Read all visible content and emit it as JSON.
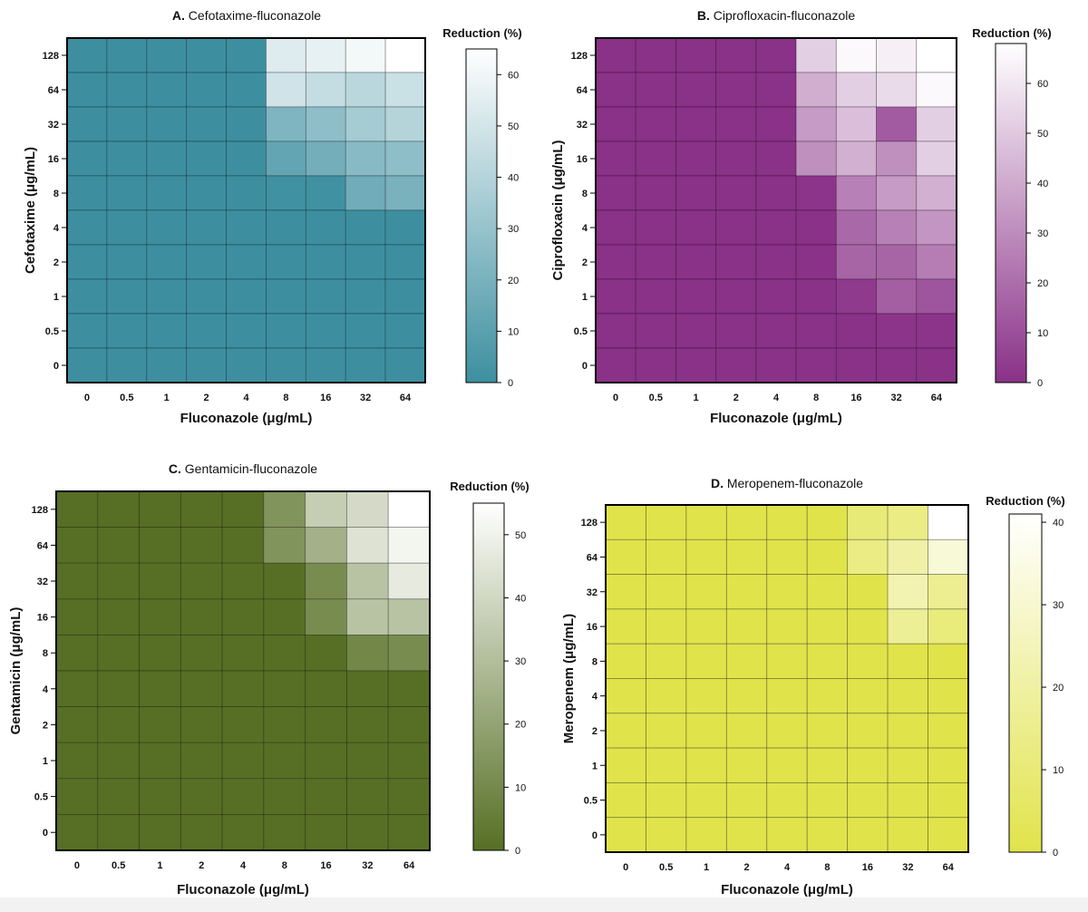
{
  "chart_data": [
    {
      "type": "heatmap",
      "panel": "A",
      "title_prefix": "A.",
      "title": "Cefotaxime-fluconazole",
      "xlabel": "Fluconazole (μg/mL)",
      "ylabel": "Cefotaxime (μg/mL)",
      "x_ticks": [
        "0",
        "0.5",
        "1",
        "2",
        "4",
        "8",
        "16",
        "32",
        "64"
      ],
      "y_ticks": [
        "128",
        "64",
        "32",
        "16",
        "8",
        "4",
        "2",
        "1",
        "0.5",
        "0"
      ],
      "colorbar_label": "Reduction (%)",
      "colorbar_range": [
        0,
        65
      ],
      "colorbar_ticks": [
        "0",
        "10",
        "20",
        "30",
        "40",
        "50",
        "60"
      ],
      "color_low": "#3d8fa0",
      "color_high": "#ffffff",
      "values": [
        [
          0,
          0,
          0,
          0,
          0,
          54,
          57,
          61,
          65
        ],
        [
          0,
          0,
          0,
          0,
          0,
          49,
          45,
          42,
          47
        ],
        [
          0,
          0,
          0,
          0,
          0,
          22,
          27,
          35,
          40
        ],
        [
          0,
          0,
          0,
          0,
          0,
          13,
          18,
          25,
          27
        ],
        [
          0,
          0,
          0,
          0,
          0,
          1,
          1,
          17,
          20
        ],
        [
          0,
          0,
          0,
          0,
          0,
          0,
          0,
          0,
          0
        ],
        [
          0,
          0,
          0,
          0,
          0,
          0,
          0,
          0,
          0
        ],
        [
          0,
          0,
          0,
          0,
          0,
          0,
          0,
          0,
          0
        ],
        [
          0,
          0,
          0,
          0,
          0,
          0,
          0,
          0,
          0
        ],
        [
          0,
          0,
          0,
          0,
          0,
          0,
          0,
          0,
          0
        ]
      ]
    },
    {
      "type": "heatmap",
      "panel": "B",
      "title_prefix": "B.",
      "title": "Ciprofloxacin-fluconazole",
      "xlabel": "Fluconazole (μg/mL)",
      "ylabel": "Ciprofloxacin (μg/mL)",
      "x_ticks": [
        "0",
        "0.5",
        "1",
        "2",
        "4",
        "8",
        "16",
        "32",
        "64"
      ],
      "y_ticks": [
        "128",
        "64",
        "32",
        "16",
        "8",
        "4",
        "2",
        "1",
        "0.5",
        "0"
      ],
      "colorbar_label": "Reduction (%)",
      "colorbar_range": [
        0,
        68
      ],
      "colorbar_ticks": [
        "0",
        "10",
        "20",
        "30",
        "40",
        "50",
        "60"
      ],
      "color_low": "#8a3188",
      "color_high": "#ffffff",
      "values": [
        [
          0,
          0,
          0,
          0,
          0,
          52,
          66,
          63,
          68
        ],
        [
          0,
          0,
          0,
          0,
          0,
          41,
          52,
          56,
          66
        ],
        [
          0,
          0,
          0,
          0,
          0,
          35,
          47,
          14,
          52
        ],
        [
          0,
          0,
          0,
          0,
          0,
          31,
          42,
          31,
          52
        ],
        [
          0,
          0,
          0,
          0,
          0,
          1,
          26,
          35,
          42
        ],
        [
          0,
          0,
          0,
          0,
          0,
          0,
          18,
          26,
          33
        ],
        [
          0,
          0,
          0,
          0,
          0,
          0,
          17,
          17,
          25
        ],
        [
          0,
          0,
          0,
          0,
          0,
          0,
          3,
          15,
          12
        ],
        [
          0,
          0,
          0,
          0,
          0,
          0,
          0,
          1,
          1
        ],
        [
          0,
          0,
          0,
          0,
          0,
          0,
          0,
          0,
          0
        ]
      ]
    },
    {
      "type": "heatmap",
      "panel": "C",
      "title_prefix": "C.",
      "title": "Gentamicin-fluconazole",
      "xlabel": "Fluconazole (μg/mL)",
      "ylabel": "Gentamicin (μg/mL)",
      "x_ticks": [
        "0",
        "0.5",
        "1",
        "2",
        "4",
        "8",
        "16",
        "32",
        "64"
      ],
      "y_ticks": [
        "128",
        "64",
        "32",
        "16",
        "8",
        "4",
        "2",
        "1",
        "0.5",
        "0"
      ],
      "colorbar_label": "Reduction (%)",
      "colorbar_range": [
        0,
        55
      ],
      "colorbar_ticks": [
        "0",
        "10",
        "20",
        "30",
        "40",
        "50"
      ],
      "color_low": "#566f24",
      "color_high": "#ffffff",
      "values": [
        [
          0,
          0,
          0,
          0,
          0,
          14,
          36,
          41,
          55
        ],
        [
          0,
          0,
          0,
          0,
          0,
          14,
          25,
          44,
          51
        ],
        [
          0,
          0,
          0,
          0,
          0,
          0,
          11,
          32,
          47
        ],
        [
          0,
          0,
          0,
          0,
          0,
          0,
          11,
          32,
          32
        ],
        [
          0,
          0,
          0,
          0,
          0,
          0,
          0,
          9,
          11
        ],
        [
          0,
          0,
          0,
          0,
          0,
          0,
          0,
          0,
          0
        ],
        [
          0,
          0,
          0,
          0,
          0,
          0,
          0,
          0,
          0
        ],
        [
          0,
          0,
          0,
          0,
          0,
          0,
          0,
          0,
          0
        ],
        [
          0,
          0,
          0,
          0,
          0,
          0,
          0,
          0,
          0
        ],
        [
          0,
          0,
          0,
          0,
          0,
          0,
          0,
          0,
          0
        ]
      ]
    },
    {
      "type": "heatmap",
      "panel": "D",
      "title_prefix": "D.",
      "title": "Meropenem-fluconazole",
      "xlabel": "Fluconazole (μg/mL)",
      "ylabel": "Meropenem (μg/mL)",
      "x_ticks": [
        "0",
        "0.5",
        "1",
        "2",
        "4",
        "8",
        "16",
        "32",
        "64"
      ],
      "y_ticks": [
        "128",
        "64",
        "32",
        "16",
        "8",
        "4",
        "2",
        "1",
        "0.5",
        "0"
      ],
      "colorbar_label": "Reduction (%)",
      "colorbar_range": [
        0,
        41
      ],
      "colorbar_ticks": [
        "0",
        "10",
        "20",
        "30",
        "40"
      ],
      "color_low": "#e1e34b",
      "color_high": "#ffffff",
      "values": [
        [
          0,
          0,
          0,
          0,
          0,
          0,
          10,
          13,
          41
        ],
        [
          0,
          0,
          0,
          0,
          0,
          0,
          13,
          21,
          32
        ],
        [
          0,
          0,
          0,
          0,
          0,
          0,
          0,
          23,
          16
        ],
        [
          0,
          0,
          0,
          0,
          0,
          0,
          0,
          17,
          11
        ],
        [
          0,
          0,
          0,
          0,
          0,
          0,
          0,
          0,
          0
        ],
        [
          0,
          0,
          0,
          0,
          0,
          0,
          0,
          0,
          0
        ],
        [
          0,
          0,
          0,
          0,
          0,
          0,
          0,
          0,
          0
        ],
        [
          0,
          0,
          0,
          0,
          0,
          0,
          0,
          0,
          0
        ],
        [
          0,
          0,
          0,
          0,
          0,
          0,
          0,
          0,
          0
        ],
        [
          0,
          0,
          0,
          0,
          0,
          0,
          0,
          0,
          0
        ]
      ]
    }
  ]
}
